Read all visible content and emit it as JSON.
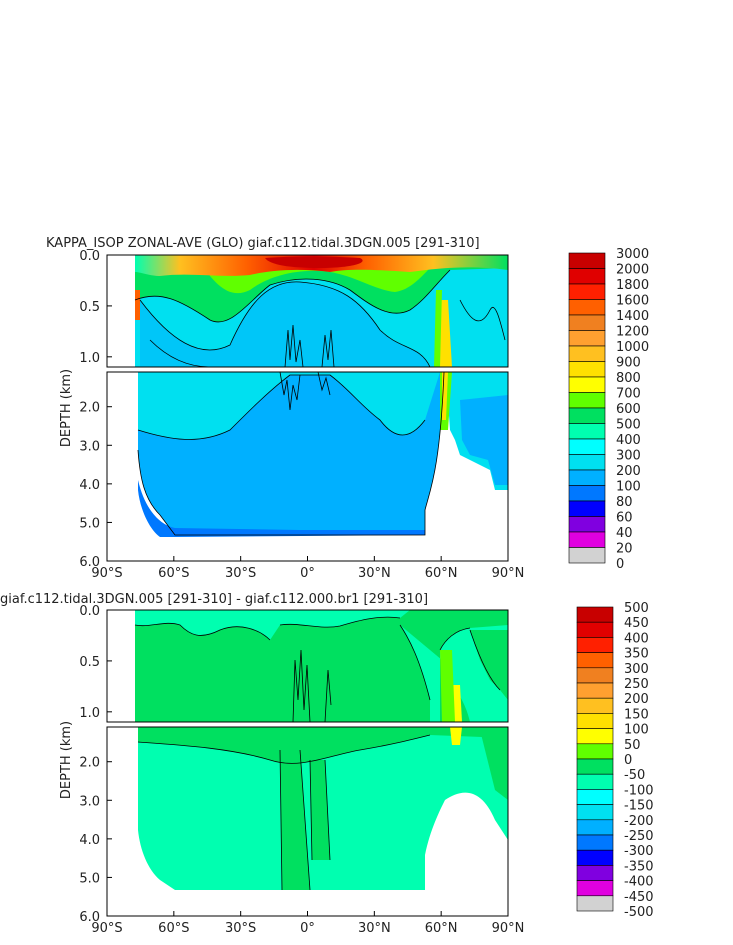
{
  "chart_data": [
    {
      "type": "heatmap",
      "title": "KAPPA_ISOP ZONAL-AVE (GLO) giaf.c112.tidal.3DGN.005 [291-310]",
      "ylabel": "DEPTH (km)",
      "xlabel": "",
      "x_ticks": [
        "90°S",
        "60°S",
        "30°S",
        "0°",
        "30°N",
        "60°N",
        "90°N"
      ],
      "x_tick_values": [
        -90,
        -60,
        -30,
        0,
        30,
        60,
        90
      ],
      "y_ticks_upper": [
        "0.0",
        "0.5",
        "1.0"
      ],
      "y_ticks_upper_values": [
        0.0,
        0.5,
        1.0
      ],
      "y_ticks_lower": [
        "2.0",
        "3.0",
        "4.0",
        "5.0",
        "6.0"
      ],
      "y_ticks_lower_values": [
        2.0,
        3.0,
        4.0,
        5.0,
        6.0
      ],
      "xlim": [
        -90,
        90
      ],
      "ylim": [
        0,
        6
      ],
      "upper_panel_depth": [
        0,
        1.1
      ],
      "lower_panel_depth": [
        1.1,
        6
      ],
      "colorbar_labels": [
        "3000",
        "2000",
        "1800",
        "1600",
        "1400",
        "1200",
        "1000",
        "900",
        "800",
        "700",
        "600",
        "500",
        "400",
        "300",
        "200",
        "100",
        "80",
        "60",
        "40",
        "20",
        "0"
      ],
      "colorbar_colors": [
        "#c80000",
        "#e00000",
        "#ff2000",
        "#ff6000",
        "#f08020",
        "#ffa030",
        "#ffc020",
        "#ffe000",
        "#ffff00",
        "#60ff00",
        "#00e060",
        "#00ffb0",
        "#00ffff",
        "#00e0f0",
        "#00b0ff",
        "#0078ff",
        "#0000ff",
        "#8000e0",
        "#e000e0",
        "#d2d2d2",
        "#707070"
      ]
    },
    {
      "type": "heatmap",
      "title": "giaf.c112.tidal.3DGN.005 [291-310] - giaf.c112.000.br1 [291-310]",
      "ylabel": "DEPTH (km)",
      "xlabel": "",
      "x_ticks": [
        "90°S",
        "60°S",
        "30°S",
        "0°",
        "30°N",
        "60°N",
        "90°N"
      ],
      "x_tick_values": [
        -90,
        -60,
        -30,
        0,
        30,
        60,
        90
      ],
      "y_ticks_upper": [
        "0.0",
        "0.5",
        "1.0"
      ],
      "y_ticks_upper_values": [
        0.0,
        0.5,
        1.0
      ],
      "y_ticks_lower": [
        "2.0",
        "3.0",
        "4.0",
        "5.0",
        "6.0"
      ],
      "y_ticks_lower_values": [
        2.0,
        3.0,
        4.0,
        5.0,
        6.0
      ],
      "xlim": [
        -90,
        90
      ],
      "ylim": [
        0,
        6
      ],
      "upper_panel_depth": [
        0,
        1.1
      ],
      "lower_panel_depth": [
        1.1,
        6
      ],
      "colorbar_labels": [
        "500",
        "450",
        "400",
        "350",
        "300",
        "250",
        "200",
        "150",
        "100",
        "50",
        "0",
        "-50",
        "-100",
        "-150",
        "-200",
        "-250",
        "-300",
        "-350",
        "-400",
        "-450",
        "-500"
      ],
      "colorbar_colors": [
        "#c80000",
        "#e00000",
        "#ff2000",
        "#ff6000",
        "#f08020",
        "#ffa030",
        "#ffc020",
        "#ffe000",
        "#ffff00",
        "#60ff00",
        "#00e060",
        "#00ffb0",
        "#00ffff",
        "#00e0f0",
        "#00b0ff",
        "#0078ff",
        "#0000ff",
        "#8000e0",
        "#e000e0",
        "#d2d2d2",
        "#707070"
      ]
    }
  ]
}
